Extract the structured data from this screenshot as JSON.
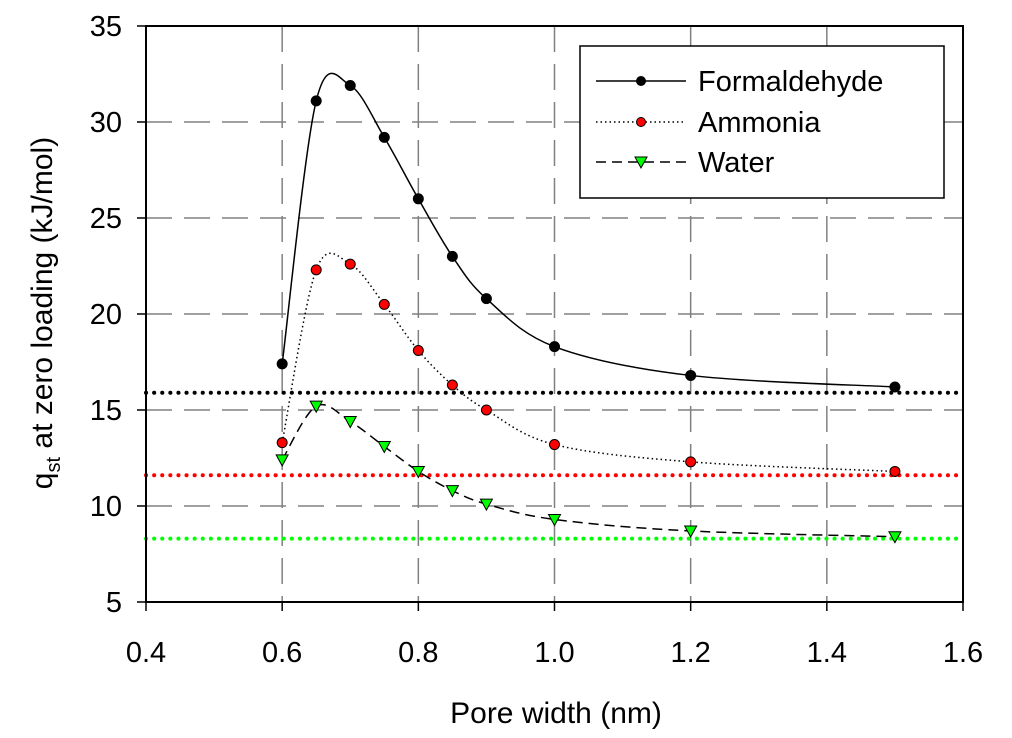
{
  "chart_data": {
    "type": "line",
    "title": "",
    "xlabel": "Pore width (nm)",
    "ylabel_main": "q",
    "ylabel_sub": "st",
    "ylabel_rest": " at zero loading (kJ/mol)",
    "xlim": [
      0.4,
      1.6
    ],
    "ylim": [
      5,
      35
    ],
    "xticks": [
      {
        "value": 0.4,
        "label": "0.4"
      },
      {
        "value": 0.6,
        "label": "0.6"
      },
      {
        "value": 0.8,
        "label": "0.8"
      },
      {
        "value": 1.0,
        "label": "1.0"
      },
      {
        "value": 1.2,
        "label": "1.2"
      },
      {
        "value": 1.4,
        "label": "1.4"
      },
      {
        "value": 1.6,
        "label": "1.6"
      }
    ],
    "yticks": [
      {
        "value": 5,
        "label": "5"
      },
      {
        "value": 10,
        "label": "10"
      },
      {
        "value": 15,
        "label": "15"
      },
      {
        "value": 20,
        "label": "20"
      },
      {
        "value": 25,
        "label": "25"
      },
      {
        "value": 30,
        "label": "30"
      },
      {
        "value": 35,
        "label": "35"
      }
    ],
    "grid": true,
    "legend_position": "top-right",
    "series": [
      {
        "name": "Formaldehyde",
        "color": "#000000",
        "marker_fill": "#000000",
        "marker": "circle",
        "line_style": "solid",
        "x": [
          0.6,
          0.65,
          0.7,
          0.75,
          0.8,
          0.85,
          0.9,
          1.0,
          1.2,
          1.5
        ],
        "y": [
          17.4,
          31.1,
          31.9,
          29.2,
          26.0,
          23.0,
          20.8,
          18.3,
          16.8,
          16.2
        ]
      },
      {
        "name": "Ammonia",
        "color": "#000000",
        "marker_fill": "#ff0000",
        "marker": "circle",
        "line_style": "dotted",
        "x": [
          0.6,
          0.65,
          0.7,
          0.75,
          0.8,
          0.85,
          0.9,
          1.0,
          1.2,
          1.5
        ],
        "y": [
          13.3,
          22.3,
          22.6,
          20.5,
          18.1,
          16.3,
          15.0,
          13.2,
          12.3,
          11.8
        ]
      },
      {
        "name": "Water",
        "color": "#000000",
        "marker_fill": "#00ff00",
        "marker": "triangle-down",
        "line_style": "dashed",
        "x": [
          0.6,
          0.65,
          0.7,
          0.75,
          0.8,
          0.85,
          0.9,
          1.0,
          1.2,
          1.5
        ],
        "y": [
          12.4,
          15.2,
          14.4,
          13.1,
          11.8,
          10.8,
          10.1,
          9.3,
          8.7,
          8.4
        ]
      }
    ],
    "reference_lines": [
      {
        "y": 15.9,
        "color": "#000000"
      },
      {
        "y": 11.6,
        "color": "#ff0000"
      },
      {
        "y": 8.3,
        "color": "#00ff00"
      }
    ]
  }
}
